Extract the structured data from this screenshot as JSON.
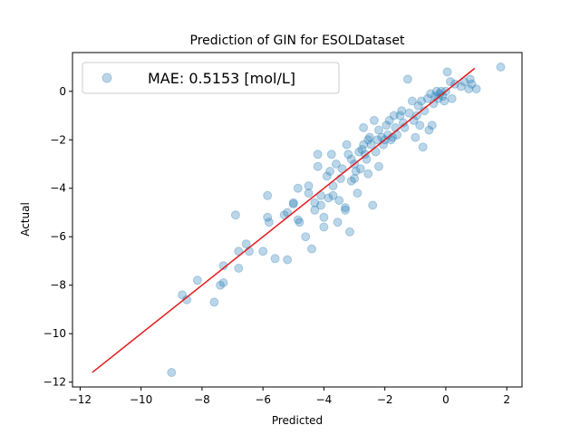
{
  "chart_data": {
    "type": "scatter",
    "title": "Prediction of GIN for ESOLDataset",
    "xlabel": "Predicted",
    "ylabel": "Actual",
    "xlim": [
      -12.25,
      2.5
    ],
    "ylim": [
      -12.2,
      1.6
    ],
    "xticks": [
      -12,
      -10,
      -8,
      -6,
      -4,
      -2,
      0,
      2
    ],
    "yticks": [
      -12,
      -10,
      -8,
      -6,
      -4,
      -2,
      0
    ],
    "grid": false,
    "legend": {
      "location": "upper-left",
      "entries": [
        "MAE: 0.5153 [mol/L]"
      ]
    },
    "colors": {
      "points": "#1f77b4",
      "line": "#e31a1c"
    },
    "reference_line": {
      "x": [
        -11.6,
        0.95
      ],
      "y": [
        -11.6,
        0.95
      ]
    },
    "series": [
      {
        "name": "MAE: 0.5153 [mol/L]",
        "points": [
          [
            -9.0,
            -11.6
          ],
          [
            -8.65,
            -8.4
          ],
          [
            -8.5,
            -8.6
          ],
          [
            -8.15,
            -7.8
          ],
          [
            -7.6,
            -8.7
          ],
          [
            -7.4,
            -8.0
          ],
          [
            -7.3,
            -7.2
          ],
          [
            -7.3,
            -7.9
          ],
          [
            -6.9,
            -5.1
          ],
          [
            -6.8,
            -7.3
          ],
          [
            -6.8,
            -6.6
          ],
          [
            -6.55,
            -6.3
          ],
          [
            -6.45,
            -6.6
          ],
          [
            -6.0,
            -6.6
          ],
          [
            -5.85,
            -4.3
          ],
          [
            -5.85,
            -5.2
          ],
          [
            -5.8,
            -5.4
          ],
          [
            -5.6,
            -6.9
          ],
          [
            -5.3,
            -5.1
          ],
          [
            -5.2,
            -6.95
          ],
          [
            -5.2,
            -5.0
          ],
          [
            -5.0,
            -4.65
          ],
          [
            -5.0,
            -4.6
          ],
          [
            -4.85,
            -5.3
          ],
          [
            -4.8,
            -5.4
          ],
          [
            -4.85,
            -4.0
          ],
          [
            -4.6,
            -6.0
          ],
          [
            -4.5,
            -3.9
          ],
          [
            -4.5,
            -4.2
          ],
          [
            -4.4,
            -6.5
          ],
          [
            -4.3,
            -4.6
          ],
          [
            -4.3,
            -4.9
          ],
          [
            -4.2,
            -3.1
          ],
          [
            -4.2,
            -2.6
          ],
          [
            -4.1,
            -4.3
          ],
          [
            -4.1,
            -4.7
          ],
          [
            -4.0,
            -5.2
          ],
          [
            -4.0,
            -5.6
          ],
          [
            -3.9,
            -3.5
          ],
          [
            -3.85,
            -4.4
          ],
          [
            -3.8,
            -3.3
          ],
          [
            -3.75,
            -2.6
          ],
          [
            -3.7,
            -4.3
          ],
          [
            -3.7,
            -3.9
          ],
          [
            -3.6,
            -3.0
          ],
          [
            -3.55,
            -5.4
          ],
          [
            -3.5,
            -4.5
          ],
          [
            -3.45,
            -3.6
          ],
          [
            -3.4,
            -3.2
          ],
          [
            -3.3,
            -4.9
          ],
          [
            -3.3,
            -4.8
          ],
          [
            -3.25,
            -2.2
          ],
          [
            -3.2,
            -2.6
          ],
          [
            -3.15,
            -5.8
          ],
          [
            -3.1,
            -3.7
          ],
          [
            -3.1,
            -2.8
          ],
          [
            -3.0,
            -3.0
          ],
          [
            -3.0,
            -3.6
          ],
          [
            -2.95,
            -3.3
          ],
          [
            -2.9,
            -4.2
          ],
          [
            -2.85,
            -2.5
          ],
          [
            -2.8,
            -3.2
          ],
          [
            -2.75,
            -2.4
          ],
          [
            -2.7,
            -2.2
          ],
          [
            -2.7,
            -1.5
          ],
          [
            -2.65,
            -2.6
          ],
          [
            -2.6,
            -2.8
          ],
          [
            -2.55,
            -2.0
          ],
          [
            -2.55,
            -3.4
          ],
          [
            -2.5,
            -1.9
          ],
          [
            -2.45,
            -2.2
          ],
          [
            -2.4,
            -4.7
          ],
          [
            -2.35,
            -1.2
          ],
          [
            -2.3,
            -2.5
          ],
          [
            -2.25,
            -2.0
          ],
          [
            -2.2,
            -1.6
          ],
          [
            -2.2,
            -3.1
          ],
          [
            -2.1,
            -1.9
          ],
          [
            -2.05,
            -2.2
          ],
          [
            -2.0,
            -2.0
          ],
          [
            -1.95,
            -1.4
          ],
          [
            -1.9,
            -1.8
          ],
          [
            -1.85,
            -1.2
          ],
          [
            -1.8,
            -2.0
          ],
          [
            -1.75,
            -1.9
          ],
          [
            -1.7,
            -1.0
          ],
          [
            -1.65,
            -1.5
          ],
          [
            -1.6,
            -1.8
          ],
          [
            -1.5,
            -1.0
          ],
          [
            -1.45,
            -0.8
          ],
          [
            -1.4,
            -1.3
          ],
          [
            -1.35,
            -1.5
          ],
          [
            -1.25,
            0.5
          ],
          [
            -1.2,
            -0.9
          ],
          [
            -1.1,
            -0.4
          ],
          [
            -1.05,
            -1.2
          ],
          [
            -1.0,
            -1.9
          ],
          [
            -0.95,
            -1.0
          ],
          [
            -0.9,
            -0.6
          ],
          [
            -0.85,
            -1.4
          ],
          [
            -0.8,
            -0.4
          ],
          [
            -0.75,
            -2.3
          ],
          [
            -0.7,
            -0.8
          ],
          [
            -0.6,
            -0.3
          ],
          [
            -0.55,
            -1.6
          ],
          [
            -0.5,
            -0.1
          ],
          [
            -0.45,
            -1.4
          ],
          [
            -0.4,
            -0.5
          ],
          [
            -0.35,
            -0.2
          ],
          [
            -0.3,
            0.0
          ],
          [
            -0.25,
            -0.3
          ],
          [
            -0.2,
            -0.1
          ],
          [
            -0.15,
            0.0
          ],
          [
            -0.1,
            -0.2
          ],
          [
            -0.05,
            -0.4
          ],
          [
            0.0,
            0.0
          ],
          [
            0.05,
            0.8
          ],
          [
            0.15,
            0.4
          ],
          [
            0.2,
            -0.3
          ],
          [
            0.3,
            0.3
          ],
          [
            0.5,
            0.2
          ],
          [
            0.6,
            0.4
          ],
          [
            0.75,
            0.1
          ],
          [
            0.8,
            0.5
          ],
          [
            0.85,
            0.3
          ],
          [
            1.0,
            0.1
          ],
          [
            1.8,
            1.0
          ]
        ]
      }
    ]
  }
}
